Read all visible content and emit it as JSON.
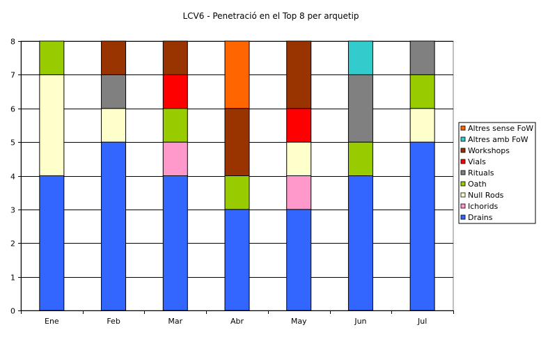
{
  "chart_data": {
    "type": "bar",
    "stacked": true,
    "title": "LCV6 - Penetració en el Top 8 per arquetip",
    "xlabel": "",
    "ylabel": "",
    "ylim": [
      0,
      8
    ],
    "yticks": [
      "0",
      "1",
      "2",
      "3",
      "4",
      "5",
      "6",
      "7",
      "8"
    ],
    "grid": true,
    "legend_position": "right",
    "categories": [
      "Ene",
      "Feb",
      "Mar",
      "Abr",
      "May",
      "Jun",
      "Jul"
    ],
    "series": [
      {
        "name": "Drains",
        "color": "#3366FF",
        "values": [
          4,
          5,
          4,
          3,
          3,
          4,
          5
        ]
      },
      {
        "name": "Ichorids",
        "color": "#FF99CC",
        "values": [
          0,
          0,
          1,
          0,
          1,
          0,
          0
        ]
      },
      {
        "name": "Null Rods",
        "color": "#FFFFCC",
        "values": [
          3,
          1,
          0,
          0,
          1,
          0,
          1
        ]
      },
      {
        "name": "Oath",
        "color": "#99CC00",
        "values": [
          1,
          0,
          1,
          1,
          0,
          1,
          1
        ]
      },
      {
        "name": "Rituals",
        "color": "#808080",
        "values": [
          0,
          1,
          0,
          0,
          0,
          2,
          1
        ]
      },
      {
        "name": "Vials",
        "color": "#FF0000",
        "values": [
          0,
          0,
          1,
          0,
          1,
          0,
          0
        ]
      },
      {
        "name": "Workshops",
        "color": "#993300",
        "values": [
          0,
          1,
          1,
          2,
          2,
          0,
          0
        ]
      },
      {
        "name": "Altres amb FoW",
        "color": "#33CCCC",
        "values": [
          0,
          0,
          0,
          0,
          0,
          1,
          0
        ]
      },
      {
        "name": "Altres sense FoW",
        "color": "#FF6600",
        "values": [
          0,
          0,
          0,
          2,
          0,
          0,
          0
        ]
      }
    ]
  }
}
